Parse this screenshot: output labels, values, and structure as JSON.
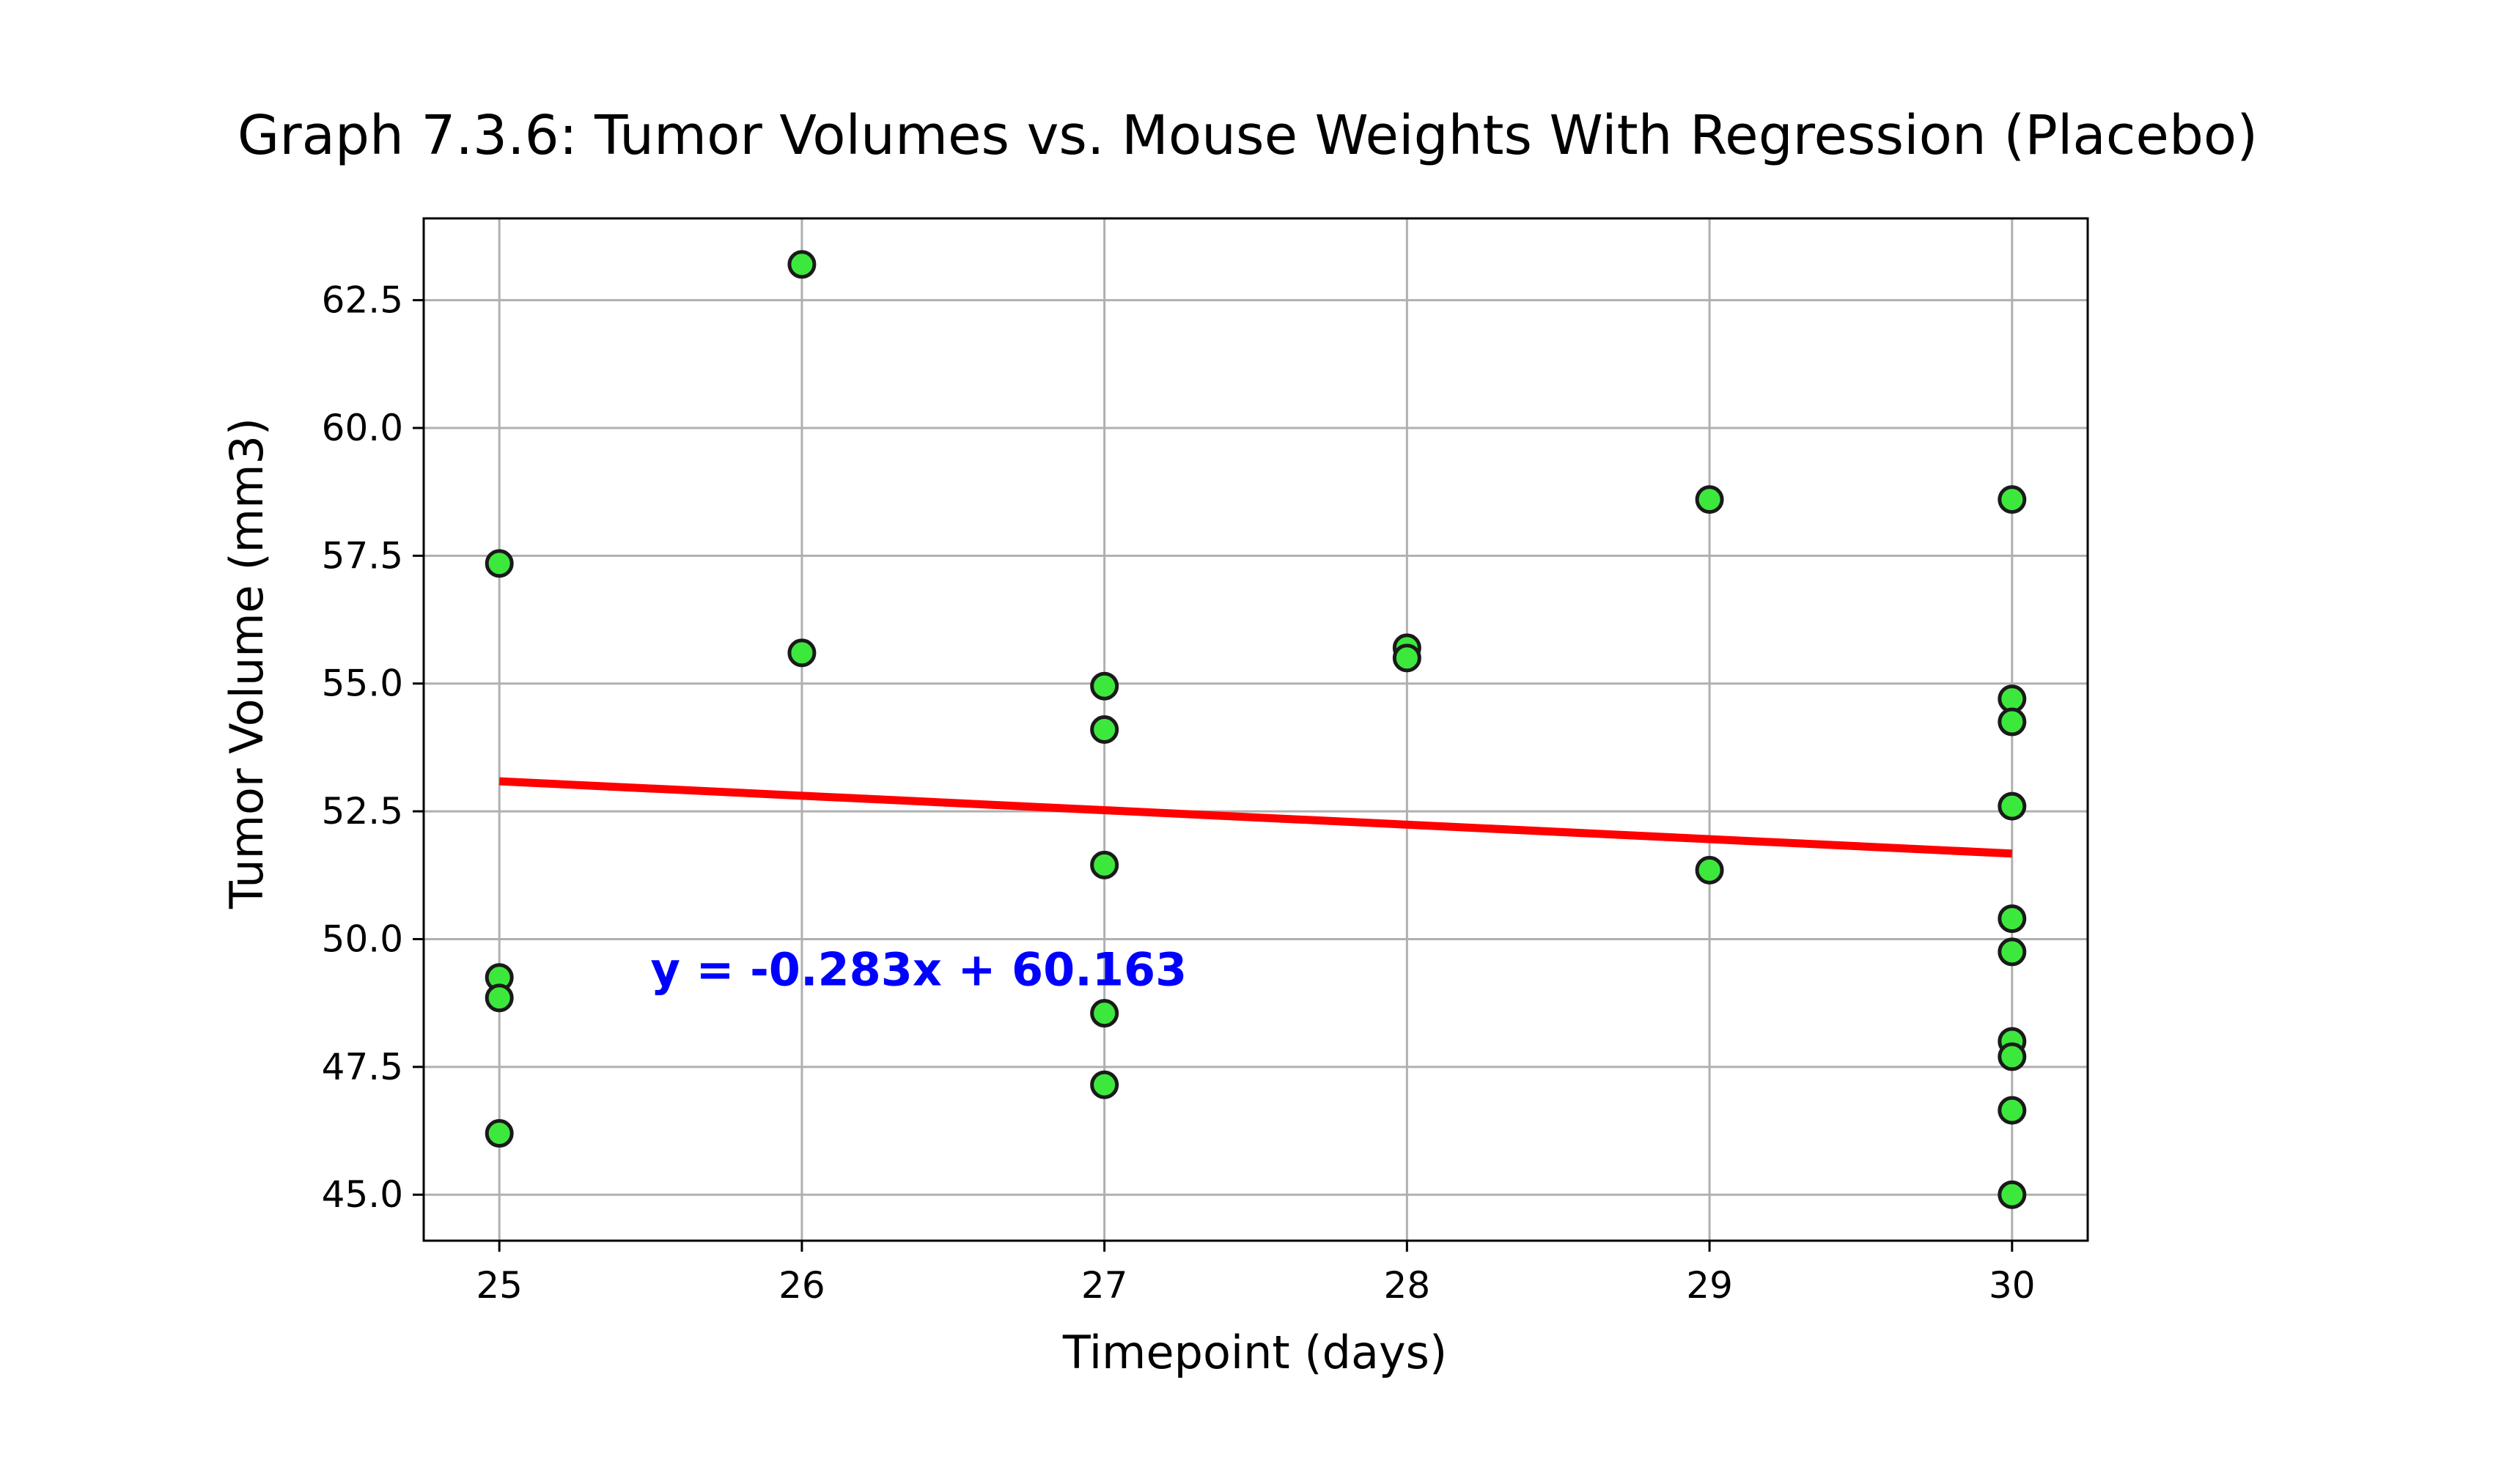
{
  "chart_data": {
    "type": "scatter",
    "title": "Graph 7.3.6: Tumor Volumes vs. Mouse Weights With Regression (Placebo)",
    "xlabel": "Timepoint (days)",
    "ylabel": "Tumor Volume (mm3)",
    "xlim": [
      24.75,
      30.25
    ],
    "ylim": [
      44.1,
      64.1
    ],
    "x_ticks": [
      25,
      26,
      27,
      28,
      29,
      30
    ],
    "x_tick_labels": [
      "25",
      "26",
      "27",
      "28",
      "29",
      "30"
    ],
    "y_ticks": [
      45.0,
      47.5,
      50.0,
      52.5,
      55.0,
      57.5,
      60.0,
      62.5
    ],
    "y_tick_labels": [
      "45.0",
      "47.5",
      "50.0",
      "52.5",
      "55.0",
      "57.5",
      "60.0",
      "62.5"
    ],
    "grid": true,
    "points": [
      {
        "x": 25,
        "y": 57.35
      },
      {
        "x": 25,
        "y": 49.25
      },
      {
        "x": 25,
        "y": 48.85
      },
      {
        "x": 25,
        "y": 46.2
      },
      {
        "x": 26,
        "y": 63.2
      },
      {
        "x": 26,
        "y": 55.6
      },
      {
        "x": 27,
        "y": 54.95
      },
      {
        "x": 27,
        "y": 54.1
      },
      {
        "x": 27,
        "y": 51.45
      },
      {
        "x": 27,
        "y": 48.55
      },
      {
        "x": 27,
        "y": 47.15
      },
      {
        "x": 28,
        "y": 55.7
      },
      {
        "x": 28,
        "y": 55.5
      },
      {
        "x": 29,
        "y": 58.6
      },
      {
        "x": 29,
        "y": 51.35
      },
      {
        "x": 30,
        "y": 58.6
      },
      {
        "x": 30,
        "y": 54.7
      },
      {
        "x": 30,
        "y": 54.25
      },
      {
        "x": 30,
        "y": 52.6
      },
      {
        "x": 30,
        "y": 50.4
      },
      {
        "x": 30,
        "y": 49.75
      },
      {
        "x": 30,
        "y": 48.0
      },
      {
        "x": 30,
        "y": 47.7
      },
      {
        "x": 30,
        "y": 46.65
      },
      {
        "x": 30,
        "y": 45.0
      }
    ],
    "regression": {
      "slope": -0.283,
      "intercept": 60.163,
      "x_range": [
        25,
        30
      ],
      "equation": "y = -0.283x + 60.163",
      "equation_position": {
        "x": 25.5,
        "y": 49.1
      }
    },
    "colors": {
      "marker_fill": "#3de83d",
      "marker_edge": "#1a1a1a",
      "regression_line": "#ff0000",
      "equation_text": "#0000ff"
    }
  }
}
